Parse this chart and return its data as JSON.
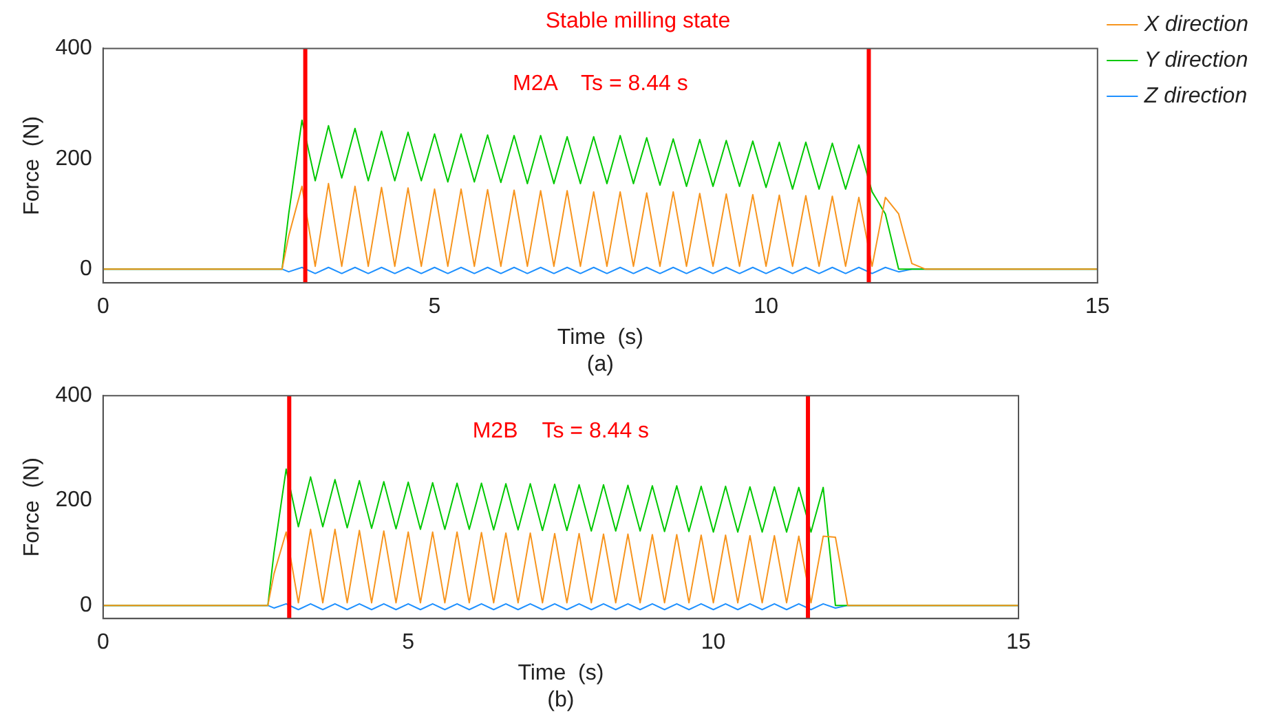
{
  "chart_data": [
    {
      "type": "line",
      "title": "Stable milling state",
      "xlabel": "Time  (s)",
      "ylabel": "Force  (N)",
      "annotations": [
        "M2A    Ts = 8.44 s",
        "(a)"
      ],
      "legend": "top right",
      "x": [
        0,
        2.7,
        2.8,
        3.0,
        3.2,
        3.4,
        3.6,
        3.8,
        4.0,
        4.2,
        4.4,
        4.6,
        4.8,
        5.0,
        5.2,
        5.4,
        5.6,
        5.8,
        6.0,
        6.2,
        6.4,
        6.6,
        6.8,
        7.0,
        7.2,
        7.4,
        7.6,
        7.8,
        8.0,
        8.2,
        8.4,
        8.6,
        8.8,
        9.0,
        9.2,
        9.4,
        9.6,
        9.8,
        10.0,
        10.2,
        10.4,
        10.6,
        10.8,
        11.0,
        11.2,
        11.4,
        11.6,
        11.8,
        12.0,
        12.2,
        12.4,
        15
      ],
      "series": [
        {
          "name": "X direction",
          "color": "#f7941d",
          "values": [
            0,
            0,
            60,
            150,
            5,
            155,
            5,
            150,
            5,
            148,
            5,
            147,
            5,
            145,
            5,
            145,
            5,
            144,
            5,
            143,
            5,
            142,
            5,
            142,
            5,
            140,
            5,
            140,
            5,
            138,
            5,
            140,
            5,
            137,
            5,
            136,
            5,
            135,
            5,
            134,
            5,
            133,
            5,
            132,
            5,
            130,
            5,
            130,
            100,
            10,
            0,
            0
          ]
        },
        {
          "name": "Y direction",
          "color": "#00c800",
          "values": [
            0,
            0,
            100,
            270,
            160,
            260,
            165,
            255,
            160,
            250,
            160,
            248,
            160,
            245,
            158,
            245,
            158,
            243,
            157,
            242,
            155,
            242,
            155,
            240,
            155,
            240,
            155,
            242,
            155,
            238,
            152,
            236,
            150,
            235,
            150,
            233,
            150,
            232,
            148,
            230,
            145,
            230,
            145,
            228,
            145,
            225,
            140,
            100,
            0,
            0,
            0,
            0
          ]
        },
        {
          "name": "Z direction",
          "color": "#1e90ff",
          "values": [
            0,
            0,
            -5,
            3,
            -8,
            3,
            -8,
            3,
            -8,
            3,
            -8,
            3,
            -8,
            3,
            -8,
            3,
            -8,
            3,
            -8,
            3,
            -8,
            3,
            -8,
            3,
            -8,
            3,
            -8,
            3,
            -8,
            3,
            -8,
            3,
            -8,
            3,
            -8,
            3,
            -8,
            3,
            -8,
            3,
            -8,
            3,
            -8,
            3,
            -8,
            3,
            -8,
            3,
            -5,
            0,
            0,
            0
          ]
        }
      ],
      "xlim": [
        0,
        15
      ],
      "xticks": [
        0,
        5,
        10,
        15
      ],
      "ylim": [
        -25,
        400
      ],
      "yticks": [
        0,
        200,
        400
      ],
      "grid": false,
      "ref_lines": [
        {
          "axis": "x",
          "value": 3.05,
          "color": "#ff0000"
        },
        {
          "axis": "x",
          "value": 11.55,
          "color": "#ff0000"
        }
      ]
    },
    {
      "type": "line",
      "xlabel": "Time  (s)",
      "ylabel": "Force  (N)",
      "annotations": [
        "M2B    Ts = 8.44 s",
        "(b)"
      ],
      "x": [
        0,
        2.7,
        2.8,
        3.0,
        3.2,
        3.4,
        3.6,
        3.8,
        4.0,
        4.2,
        4.4,
        4.6,
        4.8,
        5.0,
        5.2,
        5.4,
        5.6,
        5.8,
        6.0,
        6.2,
        6.4,
        6.6,
        6.8,
        7.0,
        7.2,
        7.4,
        7.6,
        7.8,
        8.0,
        8.2,
        8.4,
        8.6,
        8.8,
        9.0,
        9.2,
        9.4,
        9.6,
        9.8,
        10.0,
        10.2,
        10.4,
        10.6,
        10.8,
        11.0,
        11.2,
        11.4,
        11.6,
        11.8,
        12.0,
        12.2,
        12.4,
        15
      ],
      "series": [
        {
          "color": "#f7941d",
          "values": [
            0,
            0,
            60,
            140,
            5,
            145,
            5,
            145,
            5,
            143,
            5,
            142,
            5,
            140,
            5,
            140,
            5,
            140,
            5,
            139,
            5,
            138,
            5,
            138,
            5,
            137,
            5,
            137,
            5,
            136,
            5,
            136,
            5,
            135,
            5,
            135,
            5,
            134,
            5,
            134,
            5,
            133,
            5,
            133,
            5,
            132,
            5,
            132,
            130,
            0,
            0,
            0
          ]
        },
        {
          "color": "#00c800",
          "values": [
            0,
            0,
            100,
            260,
            150,
            245,
            150,
            240,
            148,
            238,
            147,
            236,
            146,
            235,
            145,
            234,
            145,
            233,
            145,
            233,
            144,
            232,
            144,
            232,
            143,
            231,
            143,
            230,
            142,
            230,
            142,
            229,
            142,
            228,
            141,
            228,
            141,
            227,
            140,
            227,
            140,
            226,
            140,
            226,
            140,
            225,
            140,
            225,
            0,
            0,
            0,
            0
          ]
        },
        {
          "color": "#1e90ff",
          "values": [
            0,
            0,
            -5,
            3,
            -8,
            3,
            -8,
            3,
            -8,
            3,
            -8,
            3,
            -8,
            3,
            -8,
            3,
            -8,
            3,
            -8,
            3,
            -8,
            3,
            -8,
            3,
            -8,
            3,
            -8,
            3,
            -8,
            3,
            -8,
            3,
            -8,
            3,
            -8,
            3,
            -8,
            3,
            -8,
            3,
            -8,
            3,
            -8,
            3,
            -8,
            3,
            -8,
            3,
            -5,
            0,
            0,
            0
          ]
        }
      ],
      "xlim": [
        0,
        15
      ],
      "xticks": [
        0,
        5,
        10,
        15
      ],
      "ylim": [
        -25,
        400
      ],
      "yticks": [
        0,
        200,
        400
      ],
      "grid": false,
      "ref_lines": [
        {
          "axis": "x",
          "value": 3.05,
          "color": "#ff0000"
        },
        {
          "axis": "x",
          "value": 11.55,
          "color": "#ff0000"
        }
      ]
    }
  ]
}
